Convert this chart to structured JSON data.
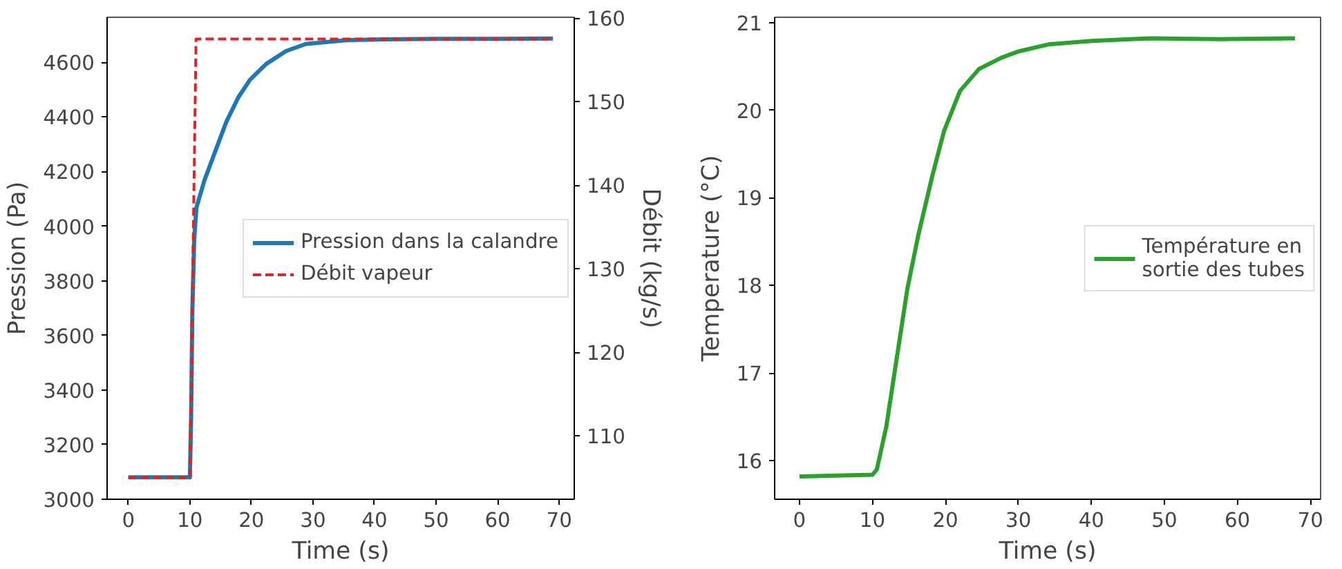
{
  "chart_data": [
    {
      "type": "line",
      "xlabel": "Time (s)",
      "ylabel": "Pression (Pa)",
      "y2label": "Débit (kg/s)",
      "xlim": [
        -3.45,
        72.45
      ],
      "xticks": [
        0,
        10,
        20,
        30,
        40,
        50,
        60,
        70
      ],
      "ylim": [
        3000,
        4765
      ],
      "yticks": [
        3000,
        3200,
        3400,
        3600,
        3800,
        4000,
        4200,
        4400,
        4600
      ],
      "y2lim": [
        102.4,
        160.1
      ],
      "y2ticks": [
        110,
        120,
        130,
        140,
        150,
        160
      ],
      "grid": false,
      "legend": "right",
      "series": [
        {
          "name": "Pression dans la calandre",
          "color": "#1f77b4",
          "line_style": "solid",
          "x": [
            0,
            5,
            10,
            10.2,
            10.4,
            10.7,
            11.06,
            12.35,
            13.97,
            15.9,
            17.85,
            19.8,
            22.4,
            25.6,
            28.8,
            35.3,
            41.8,
            50,
            60,
            69
          ],
          "values": [
            3080,
            3080,
            3080,
            3300,
            3689,
            3950,
            4068,
            4167,
            4265,
            4381,
            4471,
            4537,
            4594,
            4641,
            4667,
            4681,
            4684,
            4686,
            4686,
            4687
          ]
        },
        {
          "name": "Débit vapeur",
          "color": "#d62728",
          "line_style": "dashed",
          "axis": "y2",
          "x": [
            0,
            10,
            11,
            69
          ],
          "values": [
            105,
            105,
            157.5,
            157.5
          ]
        }
      ]
    },
    {
      "type": "line",
      "xlabel": "Time (s)",
      "ylabel": "Temperature (°C)",
      "xlim": [
        -3.4,
        71.4
      ],
      "xticks": [
        0,
        10,
        20,
        30,
        40,
        50,
        60,
        70
      ],
      "ylim": [
        15.56,
        21.06
      ],
      "yticks": [
        16,
        17,
        18,
        19,
        20,
        21
      ],
      "grid": false,
      "legend": "right",
      "series": [
        {
          "name": "Température en\nsortie des tubes",
          "color": "#2ca02c",
          "line_style": "solid",
          "x": [
            0,
            10,
            10.6,
            11.9,
            13.2,
            14.8,
            16.3,
            18.2,
            19.8,
            22.0,
            24.6,
            27.7,
            30,
            34.1,
            40,
            48,
            58,
            67.9
          ],
          "values": [
            15.82,
            15.84,
            15.9,
            16.39,
            17.1,
            17.97,
            18.58,
            19.25,
            19.76,
            20.22,
            20.47,
            20.6,
            20.67,
            20.75,
            20.79,
            20.82,
            20.81,
            20.82
          ]
        }
      ]
    }
  ]
}
